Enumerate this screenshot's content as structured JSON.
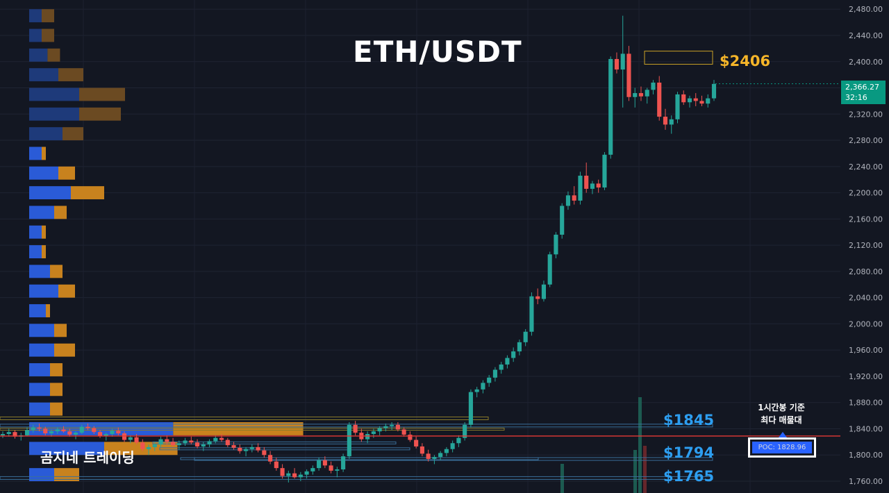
{
  "header": {
    "title": "ETH/USDT"
  },
  "branding": {
    "label": "곰지네 트레이딩"
  },
  "price_labels": [
    {
      "text": "$2406",
      "value": 2406,
      "color": "#f5b529"
    },
    {
      "text": "$1845",
      "value": 1845,
      "color": "#2d9ef0"
    },
    {
      "text": "$1794",
      "value": 1794,
      "color": "#2d9ef0"
    },
    {
      "text": "$1765",
      "value": 1765,
      "color": "#2d9ef0"
    }
  ],
  "current_price": {
    "price": "2,366.27",
    "countdown": "32:16"
  },
  "poc": {
    "note_line1": "1시간봉 기준",
    "note_line2": "최다 매물대",
    "label": "POC: 1828.96",
    "value": 1828.96
  },
  "colors": {
    "background": "#131722",
    "up": "#26a69a",
    "down": "#ef5350",
    "profile_blue": "#2a5bd7",
    "profile_orange": "#c8821e",
    "poc_line": "#e53935"
  },
  "chart_data": {
    "type": "candlestick",
    "title": "ETH/USDT",
    "ylim": [
      1742,
      2494
    ],
    "yticks": [
      "2,480.00",
      "2,440.00",
      "2,400.00",
      "2,360.00",
      "2,320.00",
      "2,280.00",
      "2,240.00",
      "2,200.00",
      "2,160.00",
      "2,120.00",
      "2,080.00",
      "2,040.00",
      "2,000.00",
      "1,960.00",
      "1,920.00",
      "1,880.00",
      "1,840.00",
      "1,800.00",
      "1,760.00"
    ],
    "ytick_values": [
      2480,
      2440,
      2400,
      2360,
      2320,
      2280,
      2240,
      2200,
      2160,
      2120,
      2080,
      2040,
      2000,
      1960,
      1920,
      1880,
      1840,
      1800,
      1760
    ],
    "candles": [
      [
        1830,
        1836,
        1826,
        1832
      ],
      [
        1832,
        1840,
        1828,
        1835
      ],
      [
        1835,
        1838,
        1825,
        1828
      ],
      [
        1828,
        1834,
        1822,
        1830
      ],
      [
        1830,
        1842,
        1829,
        1838
      ],
      [
        1838,
        1846,
        1834,
        1842
      ],
      [
        1842,
        1848,
        1836,
        1840
      ],
      [
        1840,
        1843,
        1830,
        1833
      ],
      [
        1833,
        1839,
        1828,
        1836
      ],
      [
        1836,
        1842,
        1832,
        1839
      ],
      [
        1839,
        1844,
        1834,
        1836
      ],
      [
        1836,
        1840,
        1828,
        1831
      ],
      [
        1831,
        1836,
        1824,
        1834
      ],
      [
        1834,
        1846,
        1832,
        1843
      ],
      [
        1843,
        1848,
        1838,
        1841
      ],
      [
        1841,
        1844,
        1832,
        1835
      ],
      [
        1835,
        1838,
        1826,
        1829
      ],
      [
        1829,
        1834,
        1822,
        1832
      ],
      [
        1832,
        1840,
        1828,
        1837
      ],
      [
        1837,
        1842,
        1830,
        1833
      ],
      [
        1833,
        1836,
        1820,
        1823
      ],
      [
        1823,
        1830,
        1818,
        1827
      ],
      [
        1827,
        1832,
        1816,
        1819
      ],
      [
        1819,
        1824,
        1806,
        1809
      ],
      [
        1809,
        1816,
        1800,
        1812
      ],
      [
        1812,
        1820,
        1806,
        1816
      ],
      [
        1816,
        1828,
        1812,
        1824
      ],
      [
        1824,
        1830,
        1816,
        1820
      ],
      [
        1820,
        1826,
        1812,
        1815
      ],
      [
        1815,
        1822,
        1808,
        1818
      ],
      [
        1818,
        1826,
        1814,
        1822
      ],
      [
        1822,
        1828,
        1816,
        1819
      ],
      [
        1819,
        1824,
        1810,
        1813
      ],
      [
        1813,
        1820,
        1806,
        1816
      ],
      [
        1816,
        1824,
        1812,
        1821
      ],
      [
        1821,
        1830,
        1818,
        1826
      ],
      [
        1826,
        1832,
        1820,
        1823
      ],
      [
        1823,
        1826,
        1812,
        1815
      ],
      [
        1815,
        1820,
        1808,
        1811
      ],
      [
        1811,
        1816,
        1802,
        1806
      ],
      [
        1806,
        1812,
        1798,
        1809
      ],
      [
        1809,
        1816,
        1804,
        1812
      ],
      [
        1812,
        1818,
        1804,
        1807
      ],
      [
        1807,
        1812,
        1796,
        1800
      ],
      [
        1800,
        1806,
        1786,
        1790
      ],
      [
        1790,
        1796,
        1776,
        1780
      ],
      [
        1780,
        1786,
        1764,
        1768
      ],
      [
        1768,
        1776,
        1758,
        1772
      ],
      [
        1772,
        1780,
        1764,
        1766
      ],
      [
        1766,
        1774,
        1760,
        1770
      ],
      [
        1770,
        1778,
        1764,
        1775
      ],
      [
        1775,
        1784,
        1770,
        1780
      ],
      [
        1780,
        1796,
        1776,
        1792
      ],
      [
        1792,
        1798,
        1780,
        1784
      ],
      [
        1784,
        1790,
        1772,
        1776
      ],
      [
        1776,
        1782,
        1766,
        1778
      ],
      [
        1778,
        1802,
        1774,
        1798
      ],
      [
        1798,
        1850,
        1794,
        1846
      ],
      [
        1846,
        1852,
        1830,
        1834
      ],
      [
        1834,
        1840,
        1820,
        1824
      ],
      [
        1824,
        1836,
        1818,
        1832
      ],
      [
        1832,
        1840,
        1826,
        1836
      ],
      [
        1836,
        1844,
        1830,
        1841
      ],
      [
        1841,
        1848,
        1836,
        1844
      ],
      [
        1844,
        1850,
        1838,
        1846
      ],
      [
        1846,
        1850,
        1836,
        1839
      ],
      [
        1839,
        1842,
        1828,
        1831
      ],
      [
        1831,
        1836,
        1820,
        1823
      ],
      [
        1823,
        1828,
        1810,
        1813
      ],
      [
        1813,
        1818,
        1798,
        1802
      ],
      [
        1802,
        1808,
        1790,
        1794
      ],
      [
        1794,
        1800,
        1786,
        1797
      ],
      [
        1797,
        1806,
        1792,
        1803
      ],
      [
        1803,
        1812,
        1798,
        1809
      ],
      [
        1809,
        1822,
        1804,
        1818
      ],
      [
        1818,
        1830,
        1812,
        1826
      ],
      [
        1826,
        1850,
        1822,
        1846
      ],
      [
        1846,
        1900,
        1842,
        1896
      ],
      [
        1896,
        1904,
        1888,
        1900
      ],
      [
        1900,
        1914,
        1894,
        1910
      ],
      [
        1910,
        1922,
        1904,
        1918
      ],
      [
        1918,
        1934,
        1912,
        1930
      ],
      [
        1930,
        1942,
        1924,
        1938
      ],
      [
        1938,
        1952,
        1932,
        1948
      ],
      [
        1948,
        1964,
        1942,
        1958
      ],
      [
        1958,
        1976,
        1952,
        1972
      ],
      [
        1972,
        1992,
        1966,
        1988
      ],
      [
        1988,
        2048,
        1982,
        2042
      ],
      [
        2042,
        2054,
        2030,
        2038
      ],
      [
        2038,
        2066,
        2034,
        2060
      ],
      [
        2060,
        2110,
        2056,
        2106
      ],
      [
        2106,
        2140,
        2100,
        2136
      ],
      [
        2136,
        2184,
        2130,
        2180
      ],
      [
        2180,
        2202,
        2174,
        2196
      ],
      [
        2196,
        2210,
        2182,
        2188
      ],
      [
        2188,
        2232,
        2182,
        2226
      ],
      [
        2226,
        2246,
        2200,
        2206
      ],
      [
        2206,
        2218,
        2198,
        2214
      ],
      [
        2214,
        2220,
        2200,
        2208
      ],
      [
        2208,
        2262,
        2204,
        2258
      ],
      [
        2258,
        2408,
        2252,
        2404
      ],
      [
        2404,
        2414,
        2382,
        2388
      ],
      [
        2388,
        2470,
        2330,
        2412
      ],
      [
        2412,
        2424,
        2340,
        2346
      ],
      [
        2346,
        2360,
        2330,
        2352
      ],
      [
        2352,
        2362,
        2340,
        2347
      ],
      [
        2347,
        2360,
        2336,
        2357
      ],
      [
        2357,
        2372,
        2350,
        2368
      ],
      [
        2368,
        2378,
        2310,
        2316
      ],
      [
        2316,
        2328,
        2296,
        2304
      ],
      [
        2304,
        2318,
        2290,
        2312
      ],
      [
        2312,
        2354,
        2306,
        2350
      ],
      [
        2350,
        2356,
        2334,
        2338
      ],
      [
        2338,
        2348,
        2330,
        2344
      ],
      [
        2344,
        2352,
        2332,
        2340
      ],
      [
        2340,
        2348,
        2332,
        2336
      ],
      [
        2336,
        2350,
        2330,
        2344
      ],
      [
        2344,
        2372,
        2340,
        2366
      ]
    ],
    "volume_profile": [
      {
        "low": 2460,
        "high": 2480,
        "buy": 15,
        "sell": 15
      },
      {
        "low": 2430,
        "high": 2450,
        "buy": 15,
        "sell": 15
      },
      {
        "low": 2400,
        "high": 2420,
        "buy": 22,
        "sell": 15
      },
      {
        "low": 2370,
        "high": 2390,
        "buy": 35,
        "sell": 30
      },
      {
        "low": 2340,
        "high": 2360,
        "buy": 60,
        "sell": 55
      },
      {
        "low": 2310,
        "high": 2330,
        "buy": 60,
        "sell": 50
      },
      {
        "low": 2280,
        "high": 2300,
        "buy": 40,
        "sell": 25
      },
      {
        "low": 2250,
        "high": 2270,
        "buy": 15,
        "sell": 5
      },
      {
        "low": 2220,
        "high": 2240,
        "buy": 35,
        "sell": 20
      },
      {
        "low": 2190,
        "high": 2210,
        "buy": 50,
        "sell": 40
      },
      {
        "low": 2160,
        "high": 2180,
        "buy": 30,
        "sell": 15
      },
      {
        "low": 2130,
        "high": 2150,
        "buy": 15,
        "sell": 5
      },
      {
        "low": 2100,
        "high": 2120,
        "buy": 15,
        "sell": 5
      },
      {
        "low": 2070,
        "high": 2090,
        "buy": 25,
        "sell": 15
      },
      {
        "low": 2040,
        "high": 2060,
        "buy": 35,
        "sell": 20
      },
      {
        "low": 2010,
        "high": 2030,
        "buy": 20,
        "sell": 5
      },
      {
        "low": 1980,
        "high": 2000,
        "buy": 30,
        "sell": 15
      },
      {
        "low": 1950,
        "high": 1970,
        "buy": 30,
        "sell": 25
      },
      {
        "low": 1920,
        "high": 1940,
        "buy": 25,
        "sell": 15
      },
      {
        "low": 1890,
        "high": 1910,
        "buy": 25,
        "sell": 15
      },
      {
        "low": 1860,
        "high": 1880,
        "buy": 25,
        "sell": 15
      },
      {
        "low": 1830,
        "high": 1850,
        "buy": 128,
        "sell": 120
      },
      {
        "low": 1800,
        "high": 1820,
        "buy": 90,
        "sell": 88
      },
      {
        "low": 1760,
        "high": 1780,
        "buy": 30,
        "sell": 30
      }
    ],
    "levels": [
      {
        "value": 2406,
        "box": [
          2396,
          2416
        ]
      },
      {
        "value": 1845,
        "box": [
          1843,
          1847
        ]
      },
      {
        "value": 1794,
        "box": [
          1792,
          1796
        ]
      },
      {
        "value": 1765,
        "box": [
          1763,
          1767
        ]
      }
    ]
  }
}
